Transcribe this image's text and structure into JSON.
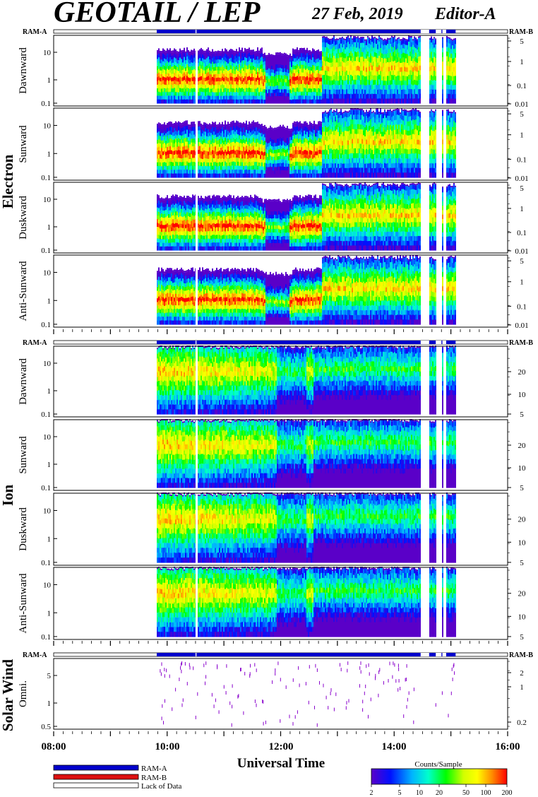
{
  "header": {
    "title": "GEOTAIL / LEP",
    "date": "27 Feb, 2019",
    "editor": "Editor-A"
  },
  "chart_data": {
    "type": "heatmap",
    "x_axis": {
      "label": "Universal Time",
      "range": [
        "08:00",
        "16:00"
      ],
      "ticks": [
        "08:00",
        "10:00",
        "12:00",
        "14:00",
        "16:00"
      ]
    },
    "ram_labels": {
      "left": "RAM-A",
      "right": "RAM-B"
    },
    "data_start": "09:49",
    "data_end": "15:05",
    "gaps": [
      [
        "10:30",
        "10:31"
      ],
      [
        "14:28",
        "14:37"
      ],
      [
        "14:44",
        "14:50"
      ],
      [
        "14:51",
        "14:55"
      ]
    ],
    "groups": [
      {
        "name": "Electron",
        "y_ticks": [
          "10",
          "1",
          "0.1"
        ],
        "right_ticks": [
          "5",
          "1",
          "0.1",
          "0.01"
        ],
        "panels": [
          {
            "name": "Dawnward"
          },
          {
            "name": "Sunward"
          },
          {
            "name": "Duskward"
          },
          {
            "name": "Anti-Sunward"
          }
        ]
      },
      {
        "name": "Ion",
        "y_ticks": [
          "10",
          "1",
          "0.1"
        ],
        "right_ticks": [
          "20",
          "10",
          "5"
        ],
        "panels": [
          {
            "name": "Dawnward"
          },
          {
            "name": "Sunward"
          },
          {
            "name": "Duskward"
          },
          {
            "name": "Anti-Sunward"
          }
        ]
      },
      {
        "name": "Solar Wind",
        "y_ticks": [
          "5",
          "1",
          "0.5"
        ],
        "right_ticks": [
          "2",
          "1",
          "0.2"
        ],
        "panels": [
          {
            "name": "Omni."
          }
        ]
      }
    ],
    "legend": [
      {
        "label": "RAM-A",
        "color": "#0000cc"
      },
      {
        "label": "RAM-B",
        "color": "#dd1111"
      },
      {
        "label": "Lack of Data",
        "color": "#ffffff"
      }
    ],
    "colorbar": {
      "title": "Counts/Sample",
      "ticks": [
        "2",
        "5",
        "10",
        "20",
        "50",
        "100",
        "200"
      ],
      "colors": [
        "#5500cc",
        "#0000ff",
        "#00aaff",
        "#00ffcc",
        "#00ff00",
        "#ccff00",
        "#ffff00",
        "#ff8800",
        "#ff0000"
      ]
    }
  }
}
